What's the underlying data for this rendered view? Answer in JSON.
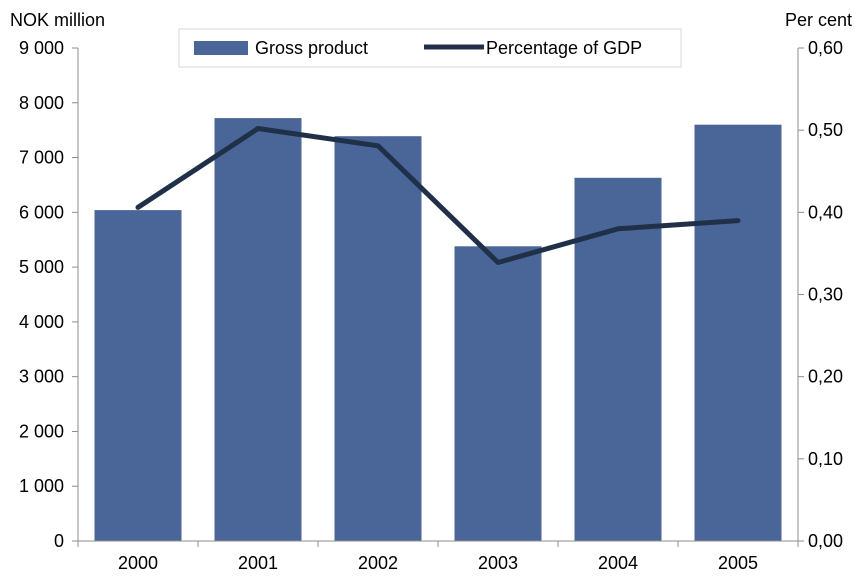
{
  "chart_data": {
    "type": "bar",
    "categories": [
      "2000",
      "2001",
      "2002",
      "2003",
      "2004",
      "2005"
    ],
    "series": [
      {
        "name": "Gross product",
        "type": "bar",
        "axis": "left",
        "color": "#4a6698",
        "values": [
          6040,
          7720,
          7390,
          5380,
          6630,
          7600
        ]
      },
      {
        "name": "Percentage of GDP",
        "type": "line",
        "axis": "right",
        "color": "#1f3048",
        "values": [
          0.406,
          0.502,
          0.481,
          0.339,
          0.38,
          0.39
        ]
      }
    ],
    "ylabel_left": "NOK million",
    "ylabel_right": "Per cent",
    "ylim_left": [
      0,
      9000
    ],
    "ylim_right": [
      0,
      0.6
    ],
    "yticks_left": [
      "0",
      "1 000",
      "2 000",
      "3 000",
      "4 000",
      "5 000",
      "6 000",
      "7 000",
      "8 000",
      "9 000"
    ],
    "yticks_right": [
      "0,00",
      "0,10",
      "0,20",
      "0,30",
      "0,40",
      "0,50",
      "0,60"
    ],
    "grid": false,
    "legend_position": "top-center"
  }
}
